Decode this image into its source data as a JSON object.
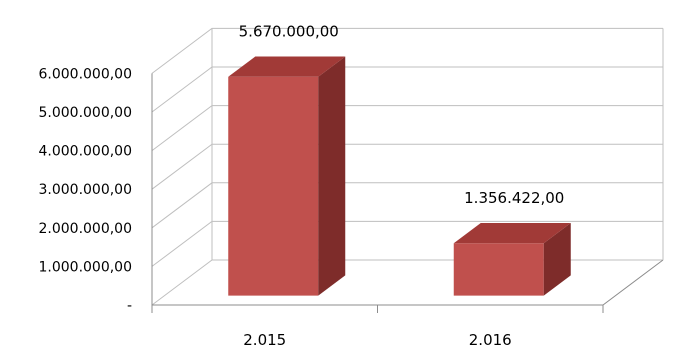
{
  "chart_data": {
    "type": "bar",
    "categories": [
      "2.015",
      "2.016"
    ],
    "series": [
      {
        "values": [
          5670000,
          1356422
        ],
        "data_labels": [
          "5.670.000,00",
          "1.356.422,00"
        ]
      }
    ],
    "yticks": [
      {
        "value": 0,
        "label": "-"
      },
      {
        "value": 1000000,
        "label": "1.000.000,00"
      },
      {
        "value": 2000000,
        "label": "2.000.000,00"
      },
      {
        "value": 3000000,
        "label": "3.000.000,00"
      },
      {
        "value": 4000000,
        "label": "4.000.000,00"
      },
      {
        "value": 5000000,
        "label": "5.000.000,00"
      },
      {
        "value": 6000000,
        "label": "6.000.000,00"
      }
    ],
    "ylim": [
      0,
      6000000
    ],
    "grid": true,
    "legend": false,
    "style": "3d-column",
    "colors": {
      "bar_front": "#c0504d",
      "bar_top": "#a13a37",
      "bar_side": "#7e2c2a",
      "gridline": "#bfbfbf",
      "axis": "#8c8c8c"
    }
  }
}
